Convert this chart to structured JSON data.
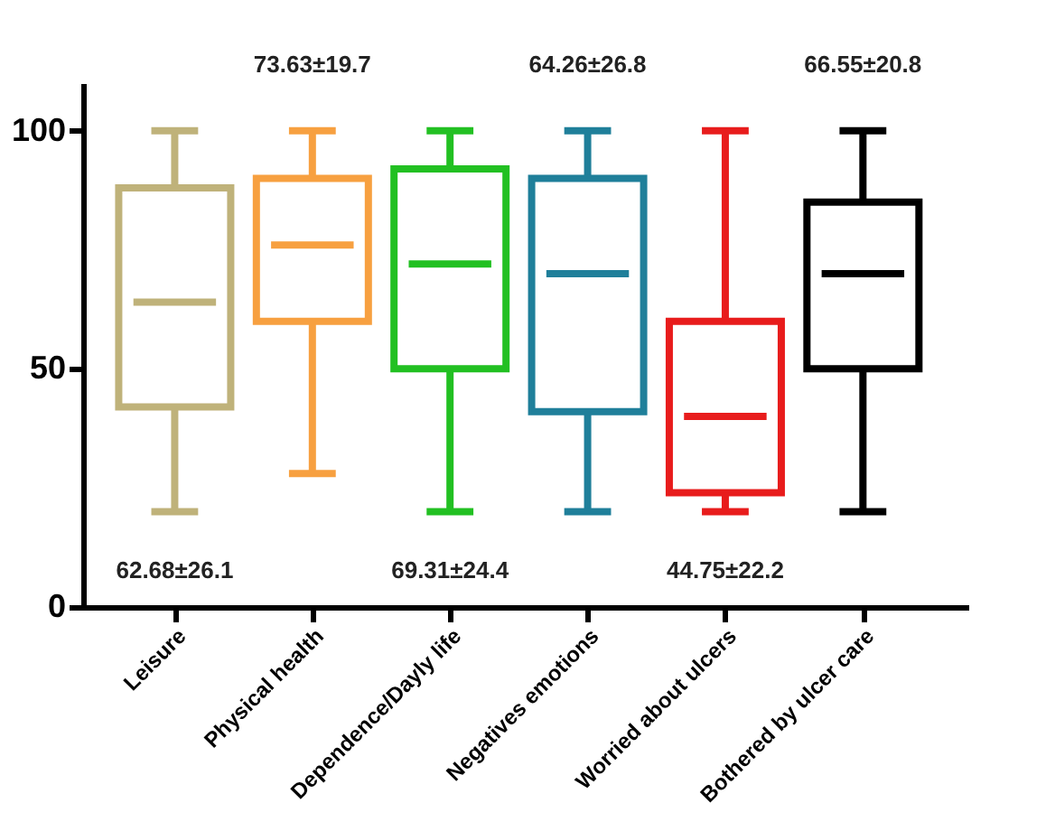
{
  "chart_data": {
    "type": "box",
    "categories": [
      "Leisure",
      "Physical health",
      "Dependence/Dayly life",
      "Negatives emotions",
      "Worried about ulcers",
      "Bothered by ulcer care"
    ],
    "colors": [
      "#bfb27a",
      "#f7a040",
      "#22c022",
      "#1f7f9a",
      "#e81c1c",
      "#000000"
    ],
    "boxes": [
      {
        "low": 20,
        "q1": 42,
        "median": 64,
        "q3": 88,
        "high": 100
      },
      {
        "low": 28,
        "q1": 60,
        "median": 76,
        "q3": 90,
        "high": 100
      },
      {
        "low": 20,
        "q1": 50,
        "median": 72,
        "q3": 92,
        "high": 100
      },
      {
        "low": 20,
        "q1": 41,
        "median": 70,
        "q3": 90,
        "high": 100
      },
      {
        "low": 20,
        "q1": 24,
        "median": 40,
        "q3": 60,
        "high": 100
      },
      {
        "low": 20,
        "q1": 50,
        "median": 70,
        "q3": 85,
        "high": 100
      }
    ],
    "annotations": [
      "62.68±26.1",
      "73.63±19.7",
      "69.31±24.4",
      "64.26±26.8",
      "44.75±22.2",
      "66.55±20.8"
    ],
    "ylim": [
      0,
      110
    ],
    "yticks": [
      0,
      50,
      100
    ],
    "grid": false
  }
}
